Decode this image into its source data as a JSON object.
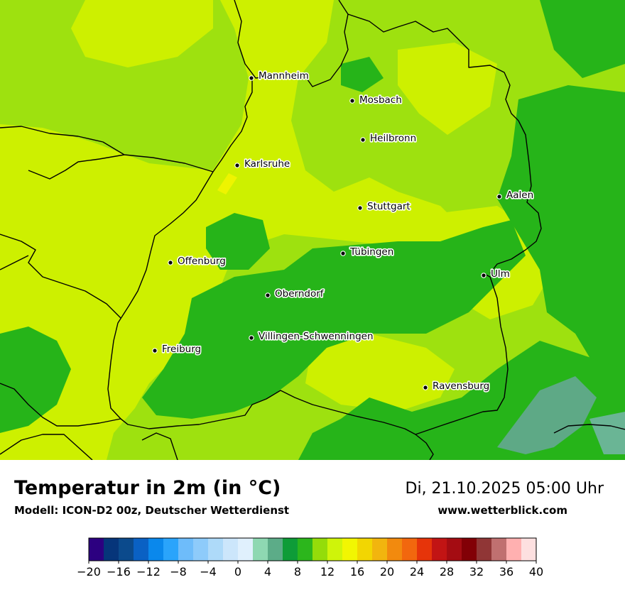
{
  "map": {
    "cities": [
      {
        "name": "Mannheim"
      },
      {
        "name": "Mosbach"
      },
      {
        "name": "Heilbronn"
      },
      {
        "name": "Karlsruhe"
      },
      {
        "name": "Aalen"
      },
      {
        "name": "Stuttgart"
      },
      {
        "name": "Tübingen"
      },
      {
        "name": "Offenburg"
      },
      {
        "name": "Ulm"
      },
      {
        "name": "Oberndorf"
      },
      {
        "name": "Villingen-Schwenningen"
      },
      {
        "name": "Freiburg"
      },
      {
        "name": "Ravensburg"
      }
    ]
  },
  "footer": {
    "title": "Temperatur in 2m (in °C)",
    "model": "Modell: ICON-D2 00z, Deutscher Wetterdienst",
    "datetime": "Di, 21.10.2025 05:00 Uhr",
    "website": "www.wetterblick.com"
  },
  "legend": {
    "colors": [
      "#2c0080",
      "#06357a",
      "#0b4a8c",
      "#0a61c4",
      "#0a88ec",
      "#2aa4fb",
      "#6ebcfa",
      "#8ecbfa",
      "#aedaf9",
      "#cce6fb",
      "#e0f0fd",
      "#8ed8b2",
      "#5cac88",
      "#0e9c38",
      "#2cb61c",
      "#94dc0a",
      "#cff40a",
      "#f2f602",
      "#f2d602",
      "#f2b50e",
      "#f28a0e",
      "#f2670e",
      "#e6340a",
      "#c21414",
      "#a40c12",
      "#820006",
      "#903636",
      "#c07070",
      "#ffb0b0",
      "#fde0e0"
    ],
    "tick_labels": [
      "−20",
      "−16",
      "−12",
      "−8",
      "−4",
      "0",
      "4",
      "8",
      "12",
      "16",
      "20",
      "24",
      "28",
      "32",
      "36",
      "40"
    ]
  }
}
